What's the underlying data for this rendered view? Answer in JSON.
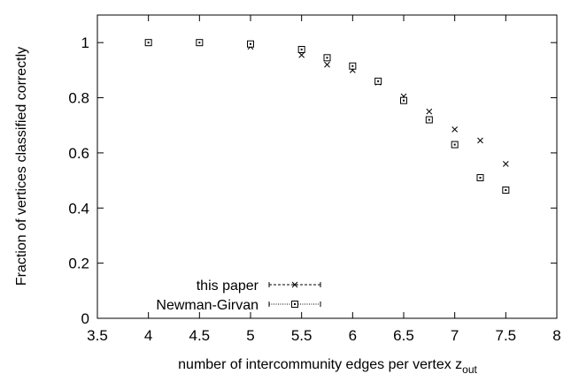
{
  "chart_data": {
    "type": "scatter",
    "xlabel": "number of intercommunity edges per vertex z",
    "xlabel_subscript": "out",
    "ylabel": "Fraction of vertices classified correctly",
    "xlim": [
      3.5,
      8
    ],
    "ylim": [
      0,
      1.1
    ],
    "xticks": [
      "3.5",
      "4",
      "4.5",
      "5",
      "5.5",
      "6",
      "6.5",
      "7",
      "7.5",
      "8"
    ],
    "yticks": [
      "0",
      "0.2",
      "0.4",
      "0.6",
      "0.8",
      "1"
    ],
    "grid": false,
    "legend_position": "bottom-left",
    "series": [
      {
        "name": "this paper",
        "marker": "x",
        "x": [
          4,
          4.5,
          5,
          5.5,
          5.75,
          6,
          6.25,
          6.5,
          6.75,
          7,
          7.25,
          7.5
        ],
        "y": [
          1.0,
          1.0,
          0.985,
          0.955,
          0.92,
          0.9,
          0.855,
          0.805,
          0.75,
          0.685,
          0.645,
          0.56
        ]
      },
      {
        "name": "Newman-Girvan",
        "marker": "square-dot",
        "x": [
          4,
          4.5,
          5,
          5.5,
          5.75,
          6,
          6.25,
          6.5,
          6.75,
          7,
          7.25,
          7.5
        ],
        "y": [
          1.0,
          1.0,
          0.995,
          0.975,
          0.945,
          0.915,
          0.86,
          0.79,
          0.72,
          0.63,
          0.51,
          0.465
        ]
      }
    ]
  }
}
